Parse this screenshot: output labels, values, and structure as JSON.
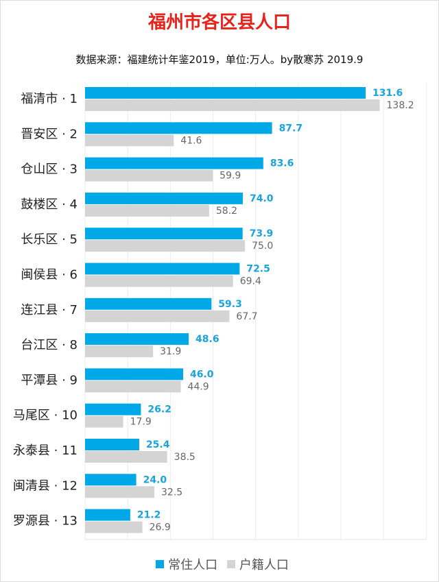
{
  "chart_data": {
    "type": "bar",
    "orientation": "horizontal",
    "title": "福州市各区县人口",
    "subtitle": "数据来源：福建统计年鉴2019，单位:万人。by散寒苏 2019.9",
    "categories": [
      "福清市 · 1",
      "晋安区 · 2",
      "仓山区 · 3",
      "鼓楼区 · 4",
      "长乐区 · 5",
      "闽侯县 · 6",
      "连江县 · 7",
      "台江区 · 8",
      "平潭县 · 9",
      "马尾区 · 10",
      "永泰县 · 11",
      "闽清县 · 12",
      "罗源县 · 13"
    ],
    "series": [
      {
        "name": "常住人口",
        "color": "#00a8e8",
        "label_color": "#1aa3dc",
        "values": [
          131.6,
          87.7,
          83.6,
          74.0,
          73.9,
          72.5,
          59.3,
          48.6,
          46.0,
          26.2,
          25.4,
          24.0,
          21.2
        ],
        "labels": [
          "131.6",
          "87.7",
          "83.6",
          "74.0",
          "73.9",
          "72.5",
          "59.3",
          "48.6",
          "46.0",
          "26.2",
          "25.4",
          "24.0",
          "21.2"
        ]
      },
      {
        "name": "户籍人口",
        "color": "#d4d4d4",
        "label_color": "#666666",
        "values": [
          138.2,
          41.6,
          59.9,
          58.2,
          75.0,
          69.4,
          67.7,
          31.9,
          44.9,
          17.9,
          38.5,
          32.5,
          26.9
        ],
        "labels": [
          "138.2",
          "41.6",
          "59.9",
          "58.2",
          "75.0",
          "69.4",
          "67.7",
          "31.9",
          "44.9",
          "17.9",
          "38.5",
          "32.5",
          "26.9"
        ]
      }
    ],
    "xlim": [
      0,
      160
    ],
    "grid": true,
    "legend": "bottom"
  }
}
